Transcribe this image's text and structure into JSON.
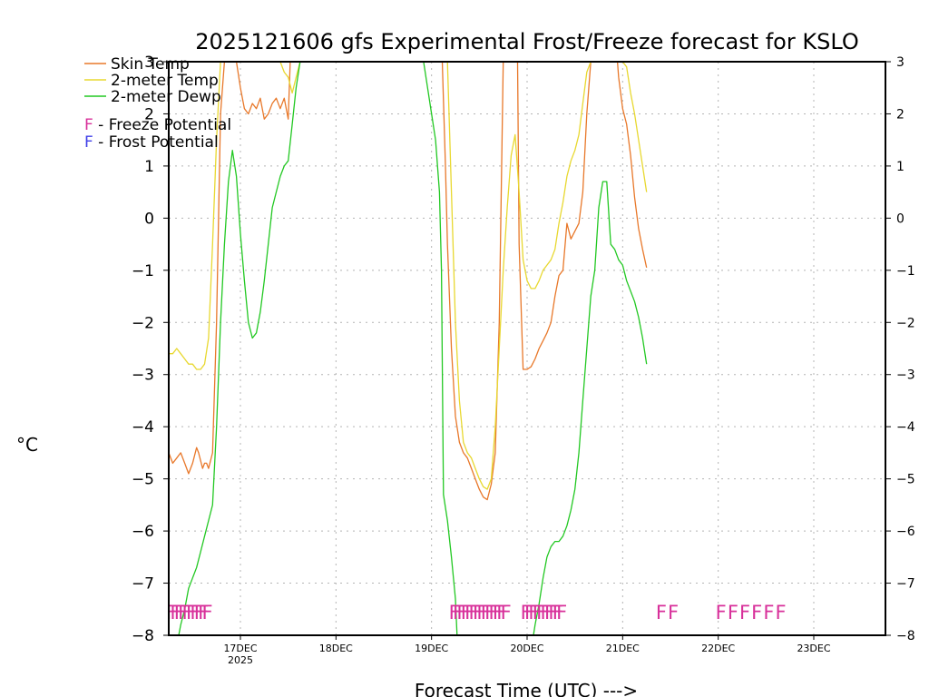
{
  "chart_data": {
    "type": "line",
    "title": "2025121606 gfs Experimental Frost/Freeze forecast for KSLO",
    "ylabel": "°C",
    "xlabel": "Forecast Time (UTC) --->",
    "ylim": [
      -8,
      3
    ],
    "yticks": [
      3,
      2,
      1,
      0,
      -1,
      -2,
      -3,
      -4,
      -5,
      -6,
      -7,
      -8
    ],
    "ytick_labels_left": [
      "3",
      "2",
      "1",
      "0",
      "−1",
      "−2",
      "−3",
      "−4",
      "−5",
      "−6",
      "−7",
      "−8"
    ],
    "ytick_labels_right": [
      "3",
      "2",
      "1",
      "0",
      "−1",
      "−2",
      "−3",
      "−4",
      "−5",
      "−6",
      "−7",
      "−8"
    ],
    "xlim_hours": [
      0,
      180
    ],
    "x_unit": "hours from 2025-12-16 06 UTC",
    "xticks": [
      {
        "hour": 18,
        "label": "17DEC",
        "sublabel": "2025"
      },
      {
        "hour": 42,
        "label": "18DEC",
        "sublabel": ""
      },
      {
        "hour": 66,
        "label": "19DEC",
        "sublabel": ""
      },
      {
        "hour": 90,
        "label": "20DEC",
        "sublabel": ""
      },
      {
        "hour": 114,
        "label": "21DEC",
        "sublabel": ""
      },
      {
        "hour": 138,
        "label": "22DEC",
        "sublabel": ""
      },
      {
        "hour": 162,
        "label": "23DEC",
        "sublabel": ""
      }
    ],
    "grid": true,
    "legend": {
      "position": "top-left",
      "entries": [
        {
          "name": "Skin Temp",
          "color": "#e8782a"
        },
        {
          "name": "2-meter Temp",
          "color": "#e8d830"
        },
        {
          "name": "2-meter Dewp",
          "color": "#22c822"
        }
      ],
      "markers": [
        {
          "symbol": "F",
          "text": " - Freeze Potential",
          "color": "#d8309a"
        },
        {
          "symbol": "F",
          "text": " - Frost Potential",
          "color": "#4040e8"
        }
      ]
    },
    "series": [
      {
        "name": "Skin Temp",
        "color": "#e8782a",
        "x": [
          0,
          1,
          2,
          3,
          4,
          5,
          6,
          7,
          7.5,
          8.5,
          9,
          9.5,
          10,
          11,
          12,
          13,
          14,
          15,
          16,
          17,
          18,
          19,
          20,
          21,
          22,
          23,
          24,
          25,
          26,
          27,
          28,
          29,
          30,
          30.5,
          68.7,
          69.5,
          70,
          71,
          72,
          73,
          74,
          75,
          76,
          77,
          78,
          79,
          80,
          81,
          82,
          83,
          84,
          87.6,
          88,
          89,
          90,
          91,
          92,
          93,
          94,
          95,
          96,
          97,
          98,
          99,
          100,
          101,
          102,
          103,
          104,
          105,
          106,
          106.6,
          112.7,
          113,
          114,
          115,
          116,
          117,
          118,
          119,
          120
        ],
        "y": [
          -4.5,
          -4.7,
          -4.6,
          -4.5,
          -4.7,
          -4.9,
          -4.7,
          -4.4,
          -4.5,
          -4.8,
          -4.7,
          -4.7,
          -4.8,
          -4.5,
          -2.0,
          2.0,
          3.0,
          3.0,
          3.0,
          3.0,
          2.5,
          2.1,
          2.0,
          2.2,
          2.1,
          2.3,
          1.9,
          2.0,
          2.2,
          2.3,
          2.1,
          2.3,
          1.9,
          3.0,
          3.0,
          1.0,
          -0.5,
          -2.5,
          -3.8,
          -4.3,
          -4.5,
          -4.6,
          -4.8,
          -5.0,
          -5.2,
          -5.35,
          -5.4,
          -5.1,
          -4.5,
          -2.0,
          3.0,
          3.0,
          -0.5,
          -2.9,
          -2.9,
          -2.85,
          -2.7,
          -2.5,
          -2.35,
          -2.2,
          -2.0,
          -1.5,
          -1.1,
          -1.0,
          -0.1,
          -0.4,
          -0.25,
          -0.1,
          0.5,
          2.0,
          3.0,
          3.0,
          3.0,
          2.7,
          2.1,
          1.8,
          1.2,
          0.4,
          -0.2,
          -0.6,
          -0.95
        ]
      },
      {
        "name": "2-meter Temp",
        "color": "#e8d830",
        "x": [
          0,
          1,
          2,
          3,
          4,
          5,
          6,
          7,
          8,
          9,
          10,
          11,
          12,
          13,
          14,
          15,
          16,
          17,
          18,
          19,
          20,
          21,
          22,
          23,
          24,
          25,
          26,
          27,
          28,
          29,
          30,
          31,
          32,
          33,
          68,
          69,
          70,
          71,
          72,
          73,
          74,
          75,
          76,
          77,
          78,
          79,
          80,
          81,
          82,
          83,
          84,
          85,
          86,
          87,
          88,
          89,
          90,
          91,
          92,
          93,
          94,
          95,
          96,
          97,
          98,
          99,
          100,
          101,
          102,
          103,
          104,
          105,
          106,
          112,
          113,
          114,
          115,
          116,
          117,
          118,
          119,
          120
        ],
        "y": [
          -2.6,
          -2.6,
          -2.5,
          -2.6,
          -2.7,
          -2.8,
          -2.8,
          -2.9,
          -2.9,
          -2.8,
          -2.3,
          -0.5,
          1.5,
          3.0,
          3.0,
          3.0,
          3.0,
          3.0,
          3.0,
          3.0,
          3.0,
          3.0,
          3.0,
          3.0,
          3.0,
          3.0,
          3.0,
          3.0,
          3.0,
          2.8,
          2.7,
          2.4,
          2.7,
          3.0,
          3.0,
          3.0,
          3.0,
          0.5,
          -2.0,
          -3.5,
          -4.3,
          -4.5,
          -4.6,
          -4.8,
          -5.0,
          -5.15,
          -5.2,
          -5.0,
          -4.0,
          -2.5,
          -1.0,
          0.2,
          1.2,
          1.6,
          0.5,
          -0.8,
          -1.2,
          -1.35,
          -1.35,
          -1.2,
          -1.0,
          -0.9,
          -0.8,
          -0.6,
          -0.1,
          0.3,
          0.8,
          1.1,
          1.3,
          1.6,
          2.2,
          2.8,
          3.0,
          3.0,
          3.0,
          3.0,
          2.9,
          2.4,
          2.0,
          1.5,
          1.0,
          0.5
        ]
      },
      {
        "name": "2-meter Dewp",
        "color": "#22c822",
        "x": [
          2.5,
          3,
          4,
          5,
          6,
          7,
          8,
          9,
          10,
          11,
          12,
          13,
          14,
          15,
          16,
          17,
          18,
          19,
          20,
          21,
          22,
          23,
          24,
          25,
          26,
          27,
          28,
          29,
          30,
          31,
          32,
          33,
          34,
          64,
          65,
          66,
          67,
          68,
          68.5,
          69,
          70,
          71,
          72,
          72.4,
          91.6,
          92,
          93,
          94,
          95,
          96,
          97,
          98,
          99,
          100,
          101,
          102,
          103,
          104,
          105,
          106,
          107,
          108,
          109,
          110,
          111,
          112,
          113,
          114,
          115,
          116,
          117,
          118,
          119,
          120
        ],
        "y": [
          -8.0,
          -7.8,
          -7.5,
          -7.1,
          -6.9,
          -6.7,
          -6.4,
          -6.1,
          -5.8,
          -5.5,
          -4.0,
          -2.0,
          -0.5,
          0.7,
          1.3,
          0.8,
          -0.3,
          -1.2,
          -2.0,
          -2.3,
          -2.2,
          -1.8,
          -1.2,
          -0.5,
          0.2,
          0.5,
          0.8,
          1.0,
          1.1,
          1.8,
          2.5,
          3.0,
          3.0,
          3.0,
          2.5,
          2.0,
          1.5,
          0.5,
          -1.0,
          -5.3,
          -5.8,
          -6.5,
          -7.3,
          -8.0,
          -8.0,
          -7.8,
          -7.4,
          -6.9,
          -6.5,
          -6.3,
          -6.2,
          -6.2,
          -6.1,
          -5.9,
          -5.6,
          -5.2,
          -4.5,
          -3.5,
          -2.5,
          -1.5,
          -1.0,
          0.2,
          0.7,
          0.7,
          -0.5,
          -0.6,
          -0.8,
          -0.9,
          -1.2,
          -1.4,
          -1.6,
          -1.9,
          -2.3,
          -2.8
        ]
      }
    ],
    "frost_freeze_markers": {
      "symbol": "F",
      "color": "#d8309a",
      "y_level": -7.55,
      "hours": [
        0,
        1,
        2,
        3,
        4,
        5,
        6,
        7,
        8,
        9,
        71,
        72,
        73,
        74,
        75,
        76,
        77,
        78,
        79,
        80,
        81,
        82,
        83,
        84,
        89,
        90,
        91,
        92,
        93,
        94,
        95,
        96,
        97,
        98,
        123,
        126,
        138,
        141,
        144,
        147,
        150,
        153
      ]
    }
  }
}
